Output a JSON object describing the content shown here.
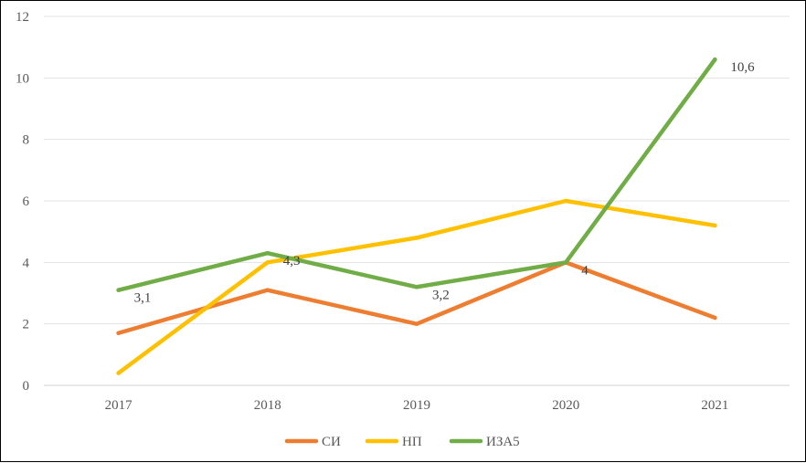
{
  "chart_data": {
    "type": "line",
    "title": "",
    "xlabel": "",
    "ylabel": "",
    "categories": [
      "2017",
      "2018",
      "2019",
      "2020",
      "2021"
    ],
    "ylim": [
      0,
      12
    ],
    "yticks": [
      "0",
      "2",
      "4",
      "6",
      "8",
      "10",
      "12"
    ],
    "grid": true,
    "legend_position": "bottom",
    "series": [
      {
        "name": "СИ",
        "color": "#ED7D31",
        "values": [
          1.7,
          3.1,
          2.0,
          4.0,
          2.2
        ]
      },
      {
        "name": "НП",
        "color": "#FFC000",
        "values": [
          0.4,
          4.0,
          4.8,
          6.0,
          5.2
        ]
      },
      {
        "name": "ИЗА5",
        "color": "#70AD47",
        "values": [
          3.1,
          4.3,
          3.2,
          4.0,
          10.6
        ]
      }
    ],
    "data_labels": [
      {
        "series": "ИЗА5",
        "category": "2017",
        "text": "3,1"
      },
      {
        "series": "ИЗА5",
        "category": "2018",
        "text": "4,3"
      },
      {
        "series": "ИЗА5",
        "category": "2019",
        "text": "3,2"
      },
      {
        "series": "ИЗА5",
        "category": "2020",
        "text": "4"
      },
      {
        "series": "ИЗА5",
        "category": "2021",
        "text": "10,6"
      }
    ]
  }
}
